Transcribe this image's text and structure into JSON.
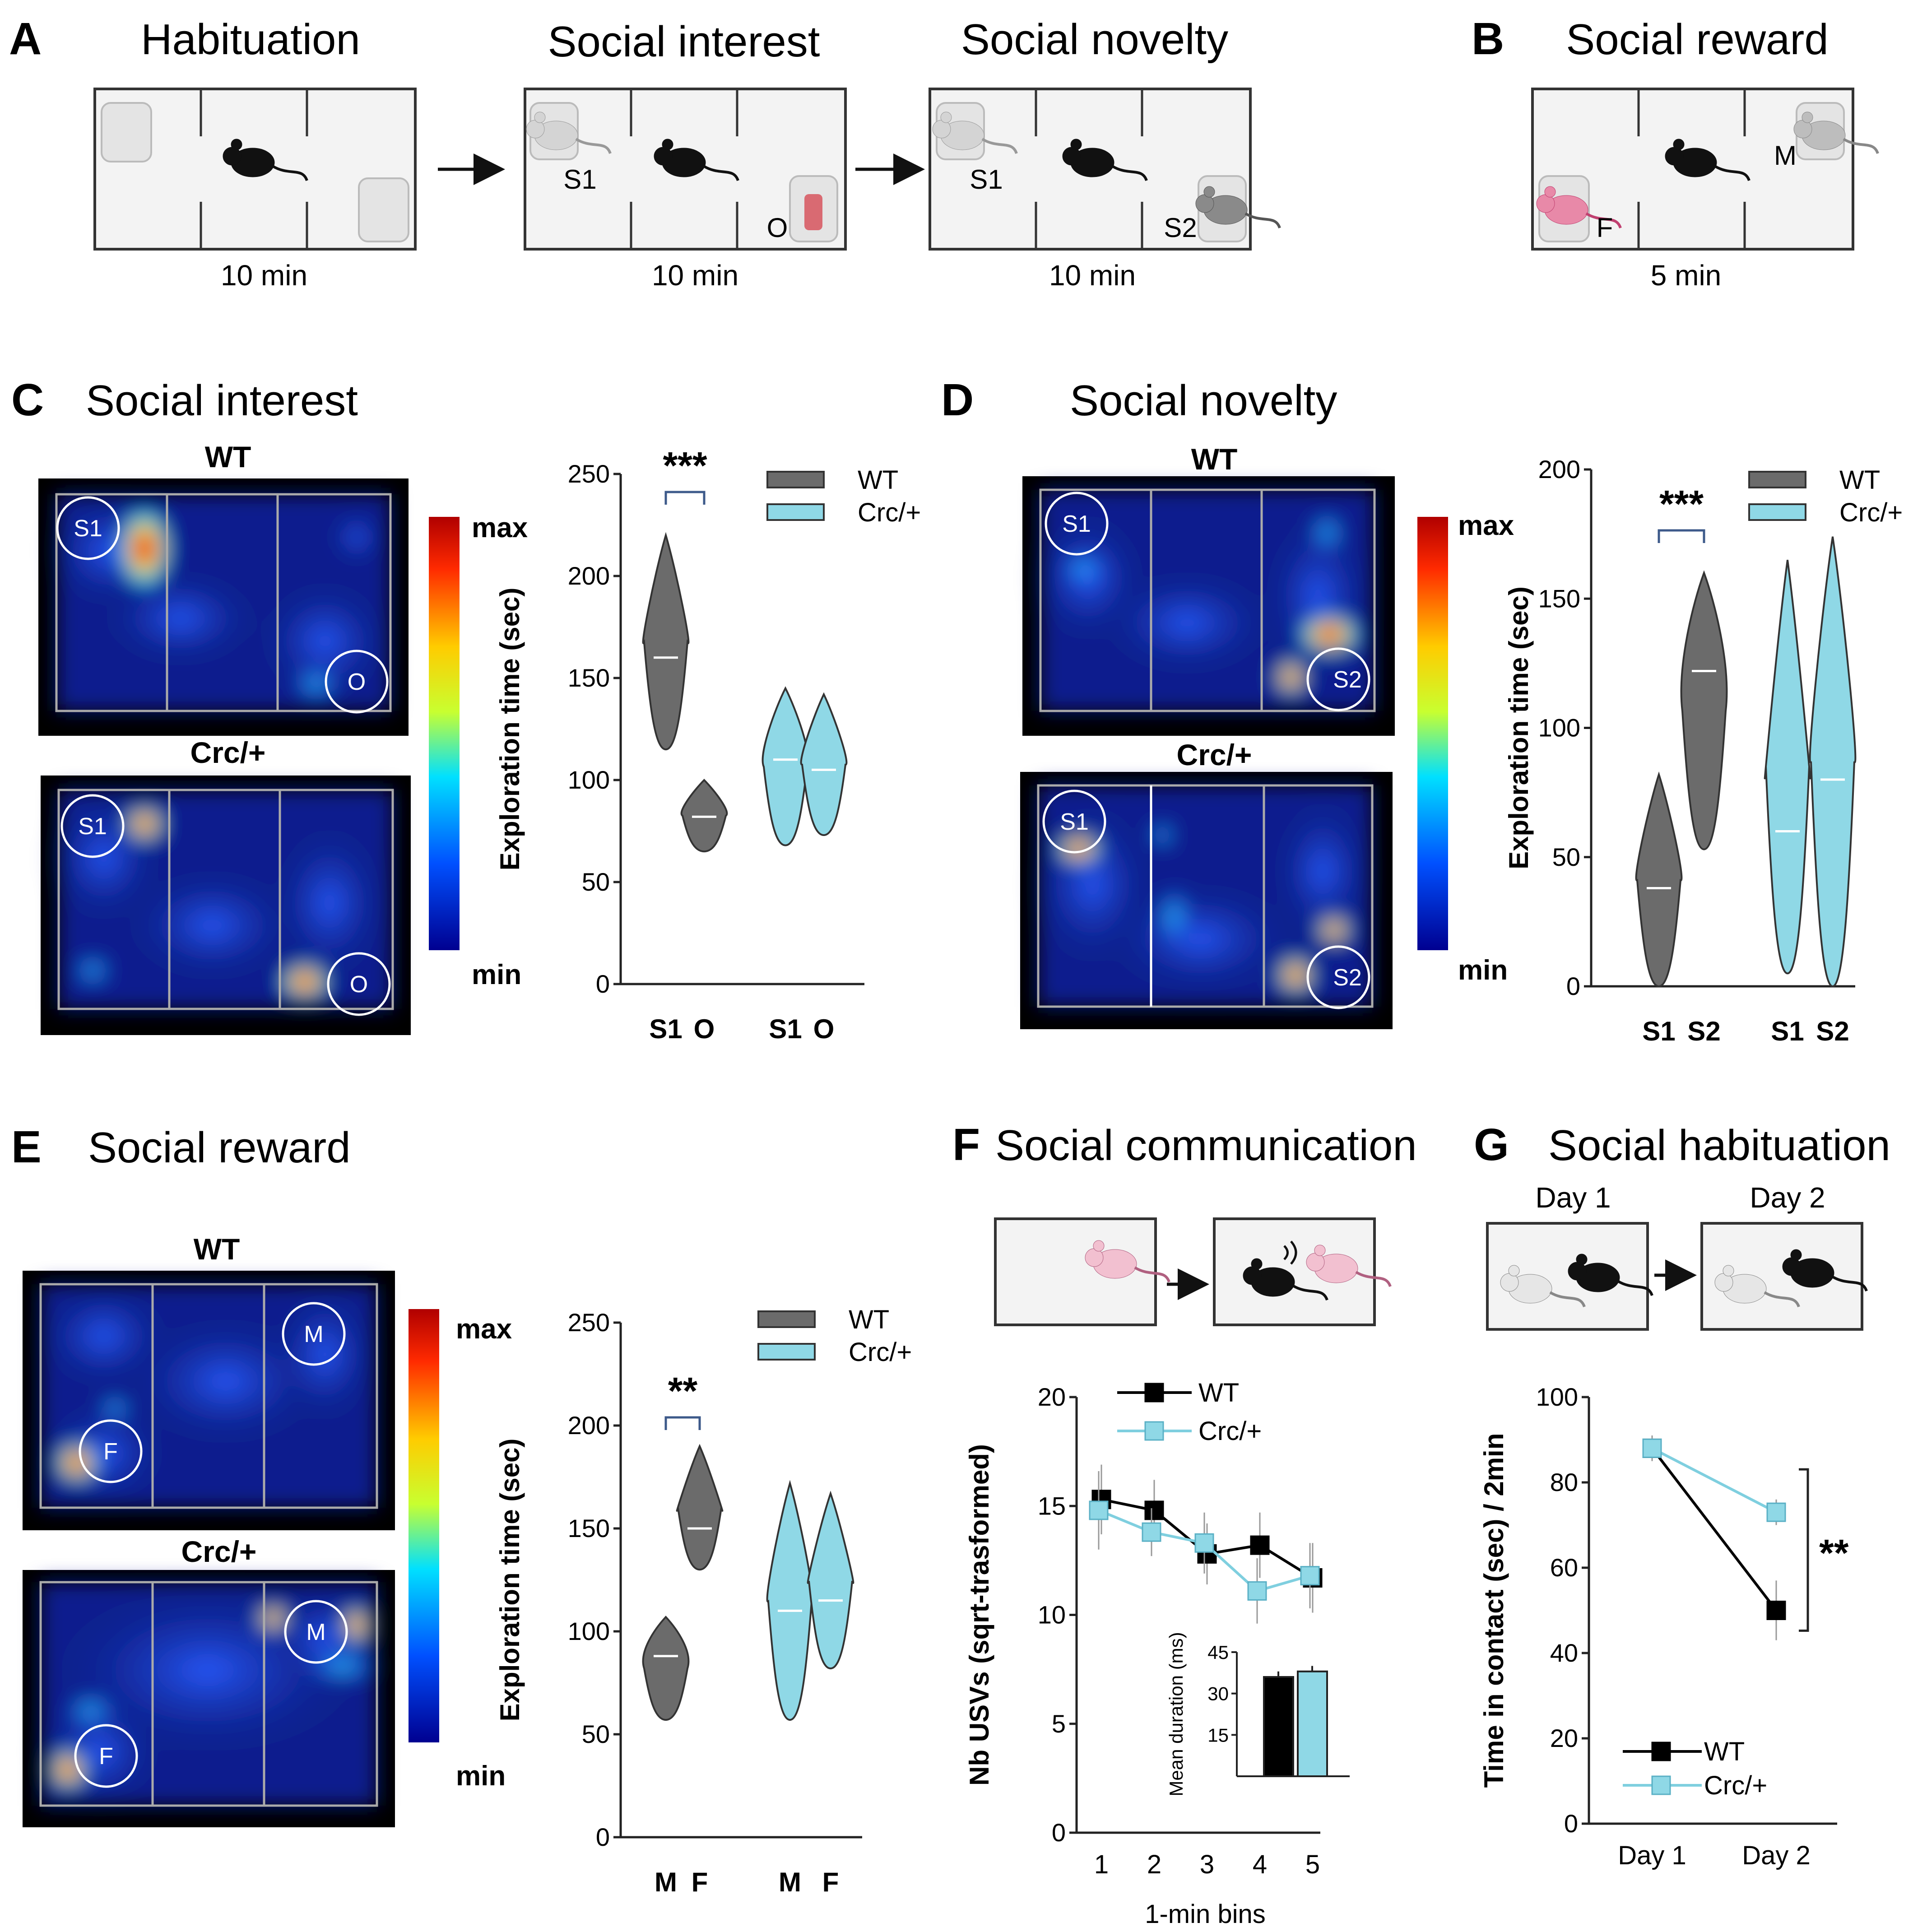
{
  "panel_a": {
    "letter": "A",
    "boxes": [
      {
        "title": "Habituation",
        "duration": "10 min"
      },
      {
        "title": "Social interest",
        "duration": "10 min",
        "labels": [
          "S1",
          "O"
        ]
      },
      {
        "title": "Social novelty",
        "duration": "10 min",
        "labels": [
          "S1",
          "S2"
        ]
      }
    ]
  },
  "panel_b": {
    "letter": "B",
    "title": "Social reward",
    "duration": "5 min",
    "labels": [
      "M",
      "F"
    ]
  },
  "panel_c": {
    "letter": "C",
    "title": "Social interest",
    "heat": {
      "wt": "WT",
      "mut": "Crc/+",
      "z1": "S1",
      "z2": "O",
      "max": "max",
      "min": "min"
    }
  },
  "panel_d": {
    "letter": "D",
    "title": "Social novelty",
    "heat": {
      "wt": "WT",
      "mut": "Crc/+",
      "z1": "S1",
      "z2": "S2",
      "max": "max",
      "min": "min"
    }
  },
  "panel_e": {
    "letter": "E",
    "title": "Social reward",
    "heat": {
      "wt": "WT",
      "mut": "Crc/+",
      "z1": "M",
      "z2": "F",
      "max": "max",
      "min": "min"
    }
  },
  "panel_f": {
    "letter": "F",
    "title": "Social communication"
  },
  "panel_g": {
    "letter": "G",
    "title": "Social habituation",
    "days": [
      "Day 1",
      "Day 2"
    ]
  },
  "colors": {
    "wt": "#6b6b6b",
    "mut": "#8fd8e6",
    "wt_line": "#000000",
    "mut_line": "#7fcfdf"
  },
  "chart_data": [
    {
      "id": "C",
      "type": "violin",
      "title": "Social interest",
      "ylabel": "Exploration time (sec)",
      "ylim": [
        0,
        250
      ],
      "yticks": [
        0,
        50,
        100,
        150,
        200,
        250
      ],
      "categories": [
        "S1",
        "O",
        "S1",
        "O"
      ],
      "legend": [
        "WT",
        "Crc/+"
      ],
      "series": [
        {
          "name": "WT",
          "groups": [
            {
              "label": "S1",
              "min": 115,
              "max": 220,
              "median": 160
            },
            {
              "label": "O",
              "min": 65,
              "max": 100,
              "median": 82
            }
          ]
        },
        {
          "name": "Crc/+",
          "groups": [
            {
              "label": "S1",
              "min": 68,
              "max": 145,
              "median": 110
            },
            {
              "label": "O",
              "min": 73,
              "max": 142,
              "median": 105
            }
          ]
        }
      ],
      "annotations": [
        {
          "text": "***",
          "between": [
            "WT S1",
            "WT O"
          ]
        }
      ]
    },
    {
      "id": "D",
      "type": "violin",
      "title": "Social novelty",
      "ylabel": "Exploration time (sec)",
      "ylim": [
        0,
        200
      ],
      "yticks": [
        0,
        50,
        100,
        150,
        200
      ],
      "categories": [
        "S1",
        "S2",
        "S1",
        "S2"
      ],
      "legend": [
        "WT",
        "Crc/+"
      ],
      "series": [
        {
          "name": "WT",
          "groups": [
            {
              "label": "S1",
              "min": 0,
              "max": 82,
              "median": 38
            },
            {
              "label": "S2",
              "min": 53,
              "max": 160,
              "median": 122
            }
          ]
        },
        {
          "name": "Crc/+",
          "groups": [
            {
              "label": "S1",
              "min": 5,
              "max": 165,
              "median": 60
            },
            {
              "label": "S2",
              "min": 0,
              "max": 174,
              "median": 80
            }
          ]
        }
      ],
      "annotations": [
        {
          "text": "***",
          "between": [
            "WT S1",
            "WT S2"
          ]
        }
      ]
    },
    {
      "id": "E",
      "type": "violin",
      "title": "Social reward",
      "ylabel": "Exploration time (sec)",
      "ylim": [
        0,
        250
      ],
      "yticks": [
        0,
        50,
        100,
        150,
        200,
        250
      ],
      "categories": [
        "M",
        "F",
        "M",
        "F"
      ],
      "legend": [
        "WT",
        "Crc/+"
      ],
      "series": [
        {
          "name": "WT",
          "groups": [
            {
              "label": "M",
              "min": 57,
              "max": 107,
              "median": 88
            },
            {
              "label": "F",
              "min": 130,
              "max": 190,
              "median": 150
            }
          ]
        },
        {
          "name": "Crc/+",
          "groups": [
            {
              "label": "M",
              "min": 57,
              "max": 172,
              "median": 110
            },
            {
              "label": "F",
              "min": 82,
              "max": 167,
              "median": 115
            }
          ]
        }
      ],
      "annotations": [
        {
          "text": "**",
          "between": [
            "WT M",
            "WT F"
          ]
        }
      ]
    },
    {
      "id": "F",
      "type": "line",
      "title": "Social communication",
      "xlabel": "1-min bins",
      "ylabel": "Nb USVs (sqrt-trasformed)",
      "x": [
        1,
        2,
        3,
        4,
        5
      ],
      "ylim": [
        0,
        20
      ],
      "yticks": [
        0,
        5,
        10,
        15,
        20
      ],
      "series": [
        {
          "name": "WT",
          "values": [
            15.3,
            14.8,
            12.8,
            13.2,
            11.7
          ],
          "errors": [
            1.6,
            1.4,
            1.4,
            1.5,
            1.6
          ]
        },
        {
          "name": "Crc/+",
          "values": [
            14.8,
            13.8,
            13.3,
            11.1,
            11.8
          ],
          "errors": [
            1.8,
            1.1,
            1.4,
            1.5,
            1.5
          ]
        }
      ],
      "inset": {
        "type": "bar",
        "ylabel": "Mean duration (ms)",
        "yticks": [
          15,
          30,
          45
        ],
        "ylim": [
          0,
          45
        ],
        "categories": [
          "WT",
          "Crc/+"
        ],
        "values": [
          36,
          38
        ],
        "errors": [
          2,
          2
        ]
      }
    },
    {
      "id": "G",
      "type": "line",
      "title": "Social habituation",
      "ylabel": "Time in contact (sec) / 2min",
      "categories": [
        "Day 1",
        "Day 2"
      ],
      "ylim": [
        0,
        100
      ],
      "yticks": [
        0,
        20,
        40,
        60,
        80,
        100
      ],
      "series": [
        {
          "name": "WT",
          "values": [
            88,
            50
          ],
          "errors": [
            3,
            7
          ]
        },
        {
          "name": "Crc/+",
          "values": [
            88,
            73
          ],
          "errors": [
            3,
            3
          ]
        }
      ],
      "annotations": [
        {
          "text": "**",
          "at": "Day 2"
        }
      ]
    }
  ]
}
